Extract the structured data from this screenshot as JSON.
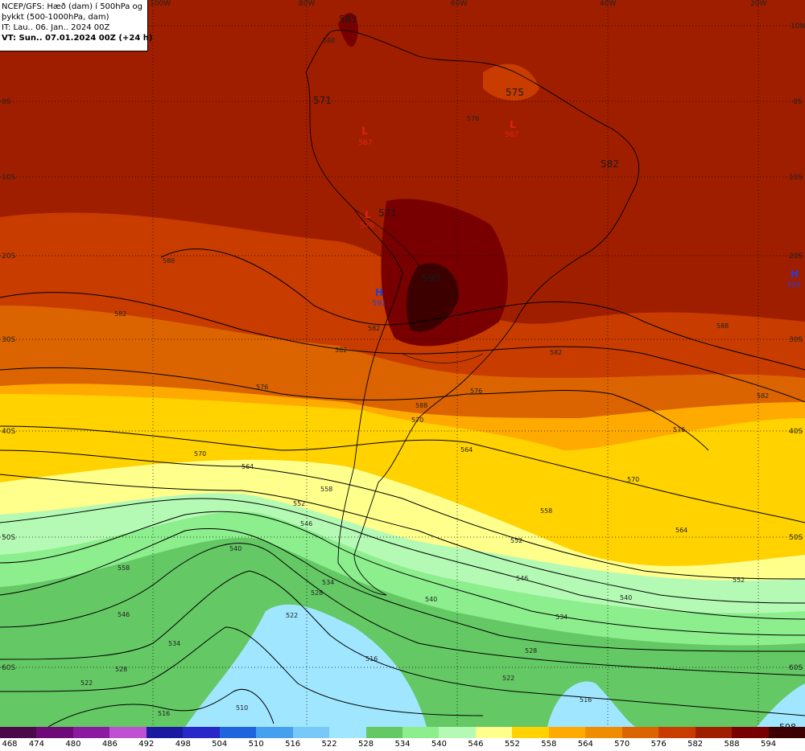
{
  "header": {
    "line1": "NCEP/GFS: Hæð (dam) í 500hPa og",
    "line2": "þykkt (500-1000hPa, dam)",
    "line3": "IT: Lau.. 06. Jan.. 2024 00Z",
    "line4": "VT: Sun.. 07.01.2024 00Z (+24 h)"
  },
  "lon_labels": [
    "100W",
    "80W",
    "60W",
    "40W",
    "20W"
  ],
  "lat_labels": [
    "10N",
    "0S",
    "10S",
    "20S",
    "30S",
    "40S",
    "50S",
    "60S"
  ],
  "legend": {
    "levels": [
      "468",
      "474",
      "480",
      "486",
      "492",
      "498",
      "504",
      "510",
      "516",
      "522",
      "528",
      "534",
      "540",
      "546",
      "552",
      "558",
      "564",
      "570",
      "576",
      "582",
      "588",
      "594"
    ],
    "colors": [
      "#4a0a4a",
      "#6e0a78",
      "#8c1aa0",
      "#c050d2",
      "#1a1aa0",
      "#2828c8",
      "#1e64dc",
      "#46a0f0",
      "#78c8f8",
      "#a0e6ff",
      "#64c864",
      "#8cee8c",
      "#b4fab4",
      "#ffff8c",
      "#ffd200",
      "#ffaa00",
      "#f08c00",
      "#dc6400",
      "#c83c00",
      "#a01e00",
      "#780000",
      "#3c0000"
    ]
  },
  "height_labels": [
    "583",
    "571",
    "575",
    "582",
    "571",
    "590",
    "598"
  ],
  "centers": [
    {
      "type": "L",
      "value": "567",
      "color": "#e02020"
    },
    {
      "type": "L",
      "value": "567",
      "color": "#e02020"
    },
    {
      "type": "L",
      "value": "570",
      "color": "#e02020"
    },
    {
      "type": "H",
      "value": "591",
      "color": "#2040e0"
    },
    {
      "type": "H",
      "value": "593",
      "color": "#2040e0"
    }
  ],
  "contour_labels": [
    "588",
    "588",
    "582",
    "582",
    "582",
    "576",
    "576",
    "570",
    "570",
    "564",
    "564",
    "558",
    "558",
    "552",
    "552",
    "546",
    "546",
    "540",
    "540",
    "534",
    "534",
    "528",
    "528",
    "522",
    "522",
    "516",
    "516",
    "510",
    "588",
    "582",
    "576",
    "570",
    "564",
    "558",
    "552",
    "546",
    "540",
    "534",
    "528",
    "522",
    "516",
    "588",
    "582",
    "576"
  ]
}
